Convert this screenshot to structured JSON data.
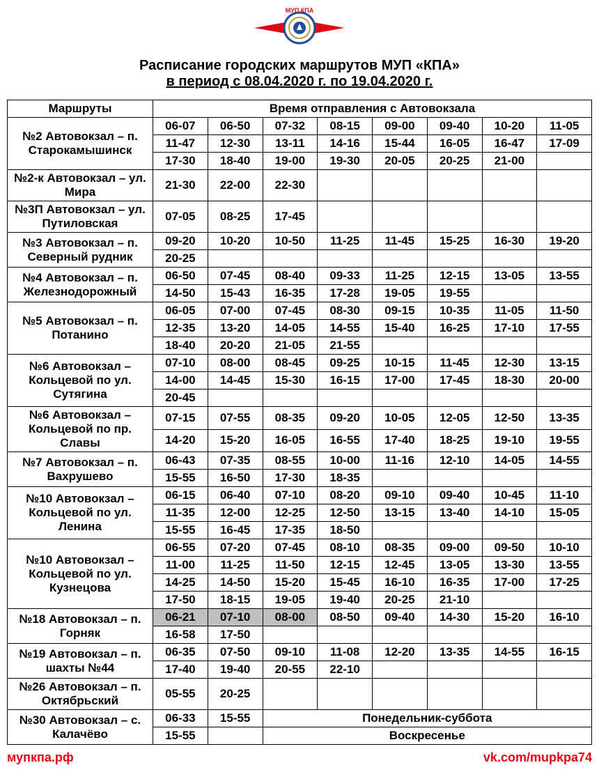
{
  "logo_text": "МУП КПА",
  "title_line1": "Расписание городских маршрутов МУП «КПА»",
  "title_line2": "в период с 08.04.2020 г. по 19.04.2020 г.",
  "header_routes": "Маршруты",
  "header_times": "Время отправления с Автовокзала",
  "footer_left": "мупкпа.рф",
  "footer_right": "vk.com/mupkpa74",
  "note_mon_sat": "Понедельник-суббота",
  "note_sun": "Воскресенье",
  "logo_colors": {
    "red": "#e30613",
    "blue": "#1f4e9c",
    "gold": "#c19a3a"
  },
  "routes": [
    {
      "name": "№2 Автовокзал – п. Старокамышинск",
      "rows": [
        [
          "06-07",
          "06-50",
          "07-32",
          "08-15",
          "09-00",
          "09-40",
          "10-20",
          "11-05"
        ],
        [
          "11-47",
          "12-30",
          "13-11",
          "14-16",
          "15-44",
          "16-05",
          "16-47",
          "17-09"
        ],
        [
          "17-30",
          "18-40",
          "19-00",
          "19-30",
          "20-05",
          "20-25",
          "21-00",
          ""
        ]
      ]
    },
    {
      "name": "№2-к Автовокзал – ул. Мира",
      "rows": [
        [
          "21-30",
          "22-00",
          "22-30",
          "",
          "",
          "",
          "",
          ""
        ]
      ]
    },
    {
      "name": "№3П Автовокзал – ул. Путиловская",
      "rows": [
        [
          "07-05",
          "08-25",
          "17-45",
          "",
          "",
          "",
          "",
          ""
        ]
      ]
    },
    {
      "name": "№3 Автовокзал – п. Северный рудник",
      "rows": [
        [
          "09-20",
          "10-20",
          "10-50",
          "11-25",
          "11-45",
          "15-25",
          "16-30",
          "19-20"
        ],
        [
          "20-25",
          "",
          "",
          "",
          "",
          "",
          "",
          ""
        ]
      ]
    },
    {
      "name": "№4 Автовокзал – п. Железнодорожный",
      "rows": [
        [
          "06-50",
          "07-45",
          "08-40",
          "09-33",
          "11-25",
          "12-15",
          "13-05",
          "13-55"
        ],
        [
          "14-50",
          "15-43",
          "16-35",
          "17-28",
          "19-05",
          "19-55",
          "",
          ""
        ]
      ]
    },
    {
      "name": "№5 Автовокзал – п. Потанино",
      "rows": [
        [
          "06-05",
          "07-00",
          "07-45",
          "08-30",
          "09-15",
          "10-35",
          "11-05",
          "11-50"
        ],
        [
          "12-35",
          "13-20",
          "14-05",
          "14-55",
          "15-40",
          "16-25",
          "17-10",
          "17-55"
        ],
        [
          "18-40",
          "20-20",
          "21-05",
          "21-55",
          "",
          "",
          "",
          ""
        ]
      ]
    },
    {
      "name": "№6 Автовокзал – Кольцевой по ул. Сутягина",
      "rows": [
        [
          "07-10",
          "08-00",
          "08-45",
          "09-25",
          "10-15",
          "11-45",
          "12-30",
          "13-15"
        ],
        [
          "14-00",
          "14-45",
          "15-30",
          "16-15",
          "17-00",
          "17-45",
          "18-30",
          "20-00"
        ],
        [
          "20-45",
          "",
          "",
          "",
          "",
          "",
          "",
          ""
        ]
      ]
    },
    {
      "name": "№6 Автовокзал – Кольцевой по пр. Славы",
      "rows": [
        [
          "07-15",
          "07-55",
          "08-35",
          "09-20",
          "10-05",
          "12-05",
          "12-50",
          "13-35"
        ],
        [
          "14-20",
          "15-20",
          "16-05",
          "16-55",
          "17-40",
          "18-25",
          "19-10",
          "19-55"
        ]
      ]
    },
    {
      "name": "№7 Автовокзал – п. Вахрушево",
      "rows": [
        [
          "06-43",
          "07-35",
          "08-55",
          "10-00",
          "11-16",
          "12-10",
          "14-05",
          "14-55"
        ],
        [
          "15-55",
          "16-50",
          "17-30",
          "18-35",
          "",
          "",
          "",
          ""
        ]
      ]
    },
    {
      "name": "№10 Автовокзал – Кольцевой по ул. Ленина",
      "rows": [
        [
          "06-15",
          "06-40",
          "07-10",
          "08-20",
          "09-10",
          "09-40",
          "10-45",
          "11-10"
        ],
        [
          "11-35",
          "12-00",
          "12-25",
          "12-50",
          "13-15",
          "13-40",
          "14-10",
          "15-05"
        ],
        [
          "15-55",
          "16-45",
          "17-35",
          "18-50",
          "",
          "",
          "",
          ""
        ]
      ]
    },
    {
      "name": "№10 Автовокзал – Кольцевой по ул. Кузнецова",
      "rows": [
        [
          "06-55",
          "07-20",
          "07-45",
          "08-10",
          "08-35",
          "09-00",
          "09-50",
          "10-10"
        ],
        [
          "11-00",
          "11-25",
          "11-50",
          "12-15",
          "12-45",
          "13-05",
          "13-30",
          "13-55"
        ],
        [
          "14-25",
          "14-50",
          "15-20",
          "15-45",
          "16-10",
          "16-35",
          "17-00",
          "17-25"
        ],
        [
          "17-50",
          "18-15",
          "19-05",
          "19-40",
          "20-25",
          "21-10",
          "",
          ""
        ]
      ]
    },
    {
      "name": "№18 Автовокзал – п. Горняк",
      "rows": [
        [
          "06-21",
          "07-10",
          "08-00",
          "08-50",
          "09-40",
          "14-30",
          "15-20",
          "16-10"
        ],
        [
          "16-58",
          "17-50",
          "",
          "",
          "",
          "",
          "",
          ""
        ]
      ],
      "highlight": [
        [
          0,
          0
        ],
        [
          0,
          1
        ],
        [
          0,
          2
        ]
      ]
    },
    {
      "name": "№19 Автовокзал – п. шахты №44",
      "rows": [
        [
          "06-35",
          "07-50",
          "09-10",
          "11-08",
          "12-20",
          "13-35",
          "14-55",
          "16-15"
        ],
        [
          "17-40",
          "19-40",
          "20-55",
          "22-10",
          "",
          "",
          "",
          ""
        ]
      ]
    },
    {
      "name": "№26 Автовокзал – п. Октябрьский",
      "rows": [
        [
          "05-55",
          "20-25",
          "",
          "",
          "",
          "",
          "",
          ""
        ]
      ]
    }
  ]
}
